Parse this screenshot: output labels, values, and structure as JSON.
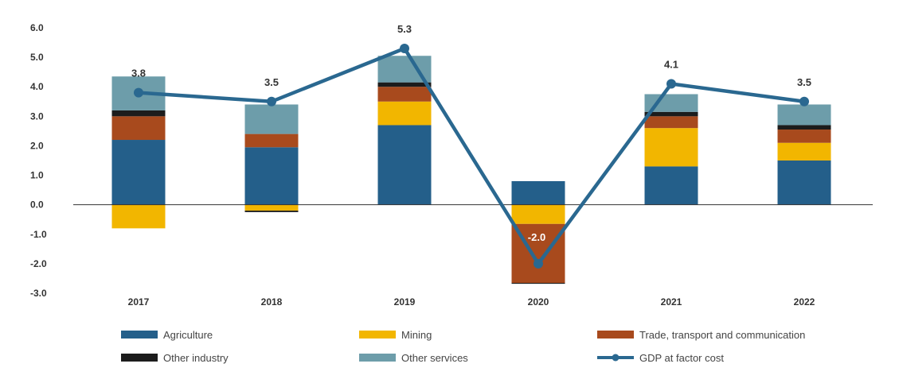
{
  "chart_data": {
    "type": "bar",
    "stacked": true,
    "categories": [
      "2017",
      "2018",
      "2019",
      "2020",
      "2021",
      "2022"
    ],
    "ylim": [
      -3.0,
      6.0
    ],
    "yticks": [
      "6.0",
      "5.0",
      "4.0",
      "3.0",
      "2.0",
      "1.0",
      "0.0",
      "-1.0",
      "-2.0",
      "-3.0"
    ],
    "grid": false,
    "legend_position": "bottom",
    "series": [
      {
        "name": "Agriculture",
        "color": "#245f8a",
        "values": [
          2.2,
          1.95,
          2.7,
          0.8,
          1.3,
          1.5
        ]
      },
      {
        "name": "Mining",
        "color": "#f2b600",
        "values": [
          -0.8,
          -0.2,
          0.8,
          -0.65,
          1.3,
          0.6
        ]
      },
      {
        "name": "Trade, transport and communication",
        "color": "#a84a1d",
        "values": [
          0.8,
          0.45,
          0.5,
          -2.0,
          0.4,
          0.45
        ]
      },
      {
        "name": "Other industry",
        "color": "#1c1c1c",
        "values": [
          0.2,
          -0.05,
          0.15,
          -0.03,
          0.15,
          0.15
        ]
      },
      {
        "name": "Other services",
        "color": "#6d9daa",
        "values": [
          1.15,
          1.0,
          0.9,
          0.0,
          0.6,
          0.7
        ]
      }
    ],
    "line": {
      "name": "GDP at factor cost",
      "color": "#2a6890",
      "values": [
        3.8,
        3.5,
        5.3,
        -2.0,
        4.1,
        3.5
      ],
      "labels": [
        "3.8",
        "3.5",
        "5.3",
        "-2.0",
        "4.1",
        "3.5"
      ]
    }
  }
}
